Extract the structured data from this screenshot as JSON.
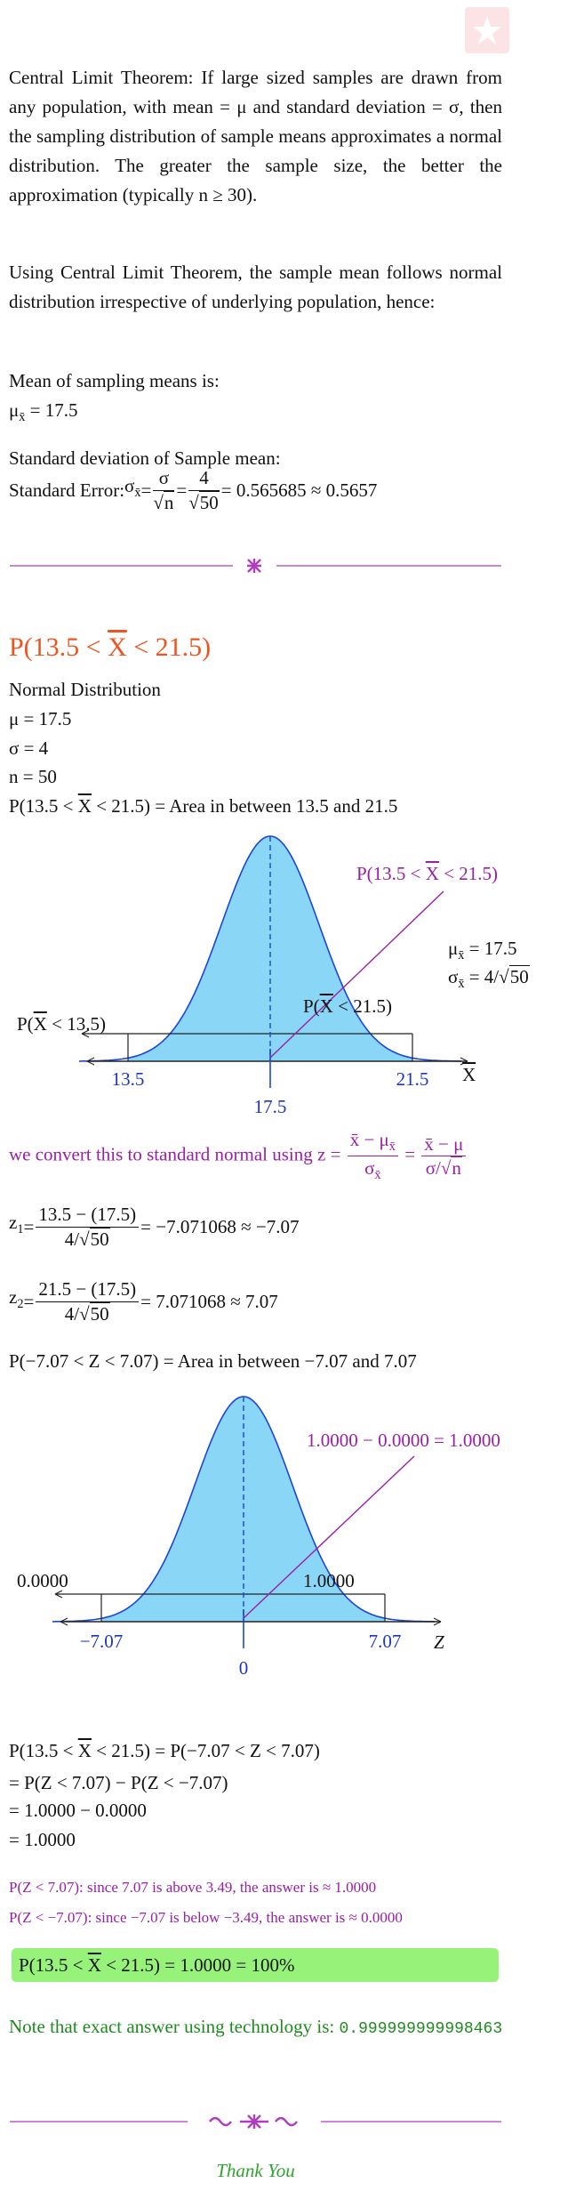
{
  "clt": {
    "p1": "Central Limit Theorem: If large sized samples are drawn from any population, with mean = μ and standard deviation = σ, then the sampling distribution of sample means approximates a normal distribution. The greater the sample size, the better the approximation (typically n ≥ 30).",
    "p2": "Using Central Limit Theorem, the sample mean follows normal distribution irrespective of underlying population, hence:",
    "mean_label": "Mean of sampling means is:",
    "mean_eq": [
      {
        "b": "μ",
        "s": "x̄"
      },
      " = 17.5"
    ],
    "sd_label": "Standard deviation of Sample mean:",
    "se_eq": [
      "Standard Error: ",
      {
        "b": "σ",
        "s": "x̄"
      },
      " = ",
      {
        "n": [
          "σ"
        ],
        "d": [
          {
            "r": [
              "n"
            ]
          }
        ]
      },
      " = ",
      {
        "n": [
          "4"
        ],
        "d": [
          {
            "r": [
              "50"
            ]
          }
        ]
      },
      " = 0.565685 ≈ 0.5657"
    ]
  },
  "problem": {
    "heading": [
      "P(13.5 < ",
      {
        "o": "X"
      },
      " < 21.5)"
    ],
    "dist": "Normal Distribution",
    "mu": "μ = 17.5",
    "sigma": "σ = 4",
    "n": "n = 50",
    "area": [
      "P(13.5 < ",
      {
        "o": "X"
      },
      " < 21.5) = Area in between 13.5 and 21.5"
    ]
  },
  "chart1": {
    "label": [
      "P(13.5 < ",
      {
        "o": "X"
      },
      " < 21.5)"
    ],
    "mu": [
      {
        "b": "μ",
        "s": "x̄"
      },
      " = 17.5"
    ],
    "sd": [
      {
        "b": "σ",
        "s": "x̄"
      },
      " = 4/",
      {
        "r": [
          "50"
        ]
      }
    ],
    "left": [
      "P(",
      {
        "o": "X"
      },
      " < 13.5)"
    ],
    "right": [
      "P(",
      {
        "o": "X"
      },
      " < 21.5)"
    ],
    "ticks": [
      "13.5",
      "17.5",
      "21.5"
    ],
    "axis": [
      {
        "o": "X"
      }
    ]
  },
  "convert": [
    "we convert this to standard normal using z = ",
    {
      "n": [
        "x̄ − ",
        {
          "b": "μ",
          "s": "x̄"
        }
      ],
      "d": [
        {
          "b": "σ",
          "s": "x̄"
        }
      ]
    },
    " = ",
    {
      "n": [
        "x̄ − μ"
      ],
      "d": [
        "σ/",
        {
          "r": [
            "n"
          ]
        }
      ]
    }
  ],
  "z1": [
    {
      "b": "z",
      "s": "1"
    },
    " = ",
    {
      "n": [
        "13.5 − (17.5)"
      ],
      "d": [
        "4/",
        {
          "r": [
            "50"
          ]
        }
      ]
    },
    " = −7.071068 ≈ −7.07"
  ],
  "z2": [
    {
      "b": "z",
      "s": "2"
    },
    " = ",
    {
      "n": [
        "21.5 − (17.5)"
      ],
      "d": [
        "4/",
        {
          "r": [
            "50"
          ]
        }
      ]
    },
    " = 7.071068 ≈ 7.07"
  ],
  "area2": "P(−7.07 < Z < 7.07) = Area in between −7.07 and 7.07",
  "chart2": {
    "label": "1.0000 − 0.0000 = 1.0000",
    "left": "0.0000",
    "right": "1.0000",
    "ticks": [
      "−7.07",
      "0",
      "7.07"
    ],
    "axis": "Z"
  },
  "result": [
    [
      "P(13.5 < ",
      {
        "o": "X"
      },
      " < 21.5) = P(−7.07 < Z < 7.07)"
    ],
    "= P(Z < 7.07) − P(Z < −7.07)",
    "= 1.0000 − 0.0000",
    "= 1.0000"
  ],
  "notes": [
    "P(Z < 7.07): since 7.07 is above 3.49, the answer is ≈ 1.0000",
    "P(Z < −7.07): since −7.07 is below −3.49, the answer is ≈ 0.0000"
  ],
  "answer": [
    "P(13.5 < ",
    {
      "o": "X"
    },
    " < 21.5) = 1.0000 = 100%"
  ],
  "tech": {
    "text": "Note that exact answer using technology is: ",
    "value": "0.999999999998463"
  },
  "thanks": "Thank You"
}
